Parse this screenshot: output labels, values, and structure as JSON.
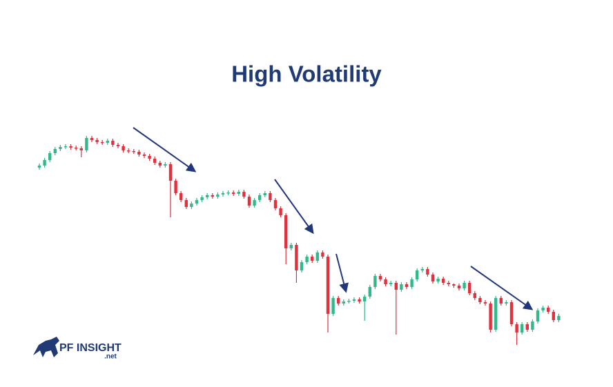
{
  "chart_data": {
    "type": "candlestick",
    "title": "High Volatility",
    "up_color": "#33b88b",
    "down_color": "#e0313d",
    "ylim": [
      0,
      340
    ],
    "open": [
      277,
      280,
      288,
      298,
      304,
      307,
      308,
      306,
      305,
      302,
      320,
      317,
      314,
      313,
      316,
      310,
      308,
      302,
      301,
      300,
      296,
      294,
      290,
      284,
      280,
      282,
      258,
      240,
      230,
      220,
      225,
      230,
      234,
      237,
      235,
      238,
      240,
      241,
      239,
      242,
      235,
      222,
      230,
      237,
      240,
      230,
      218,
      208,
      160,
      165,
      128,
      140,
      148,
      142,
      154,
      148,
      65,
      88,
      80,
      83,
      84,
      86,
      83,
      90,
      104,
      120,
      115,
      108,
      110,
      100,
      108,
      104,
      115,
      128,
      130,
      122,
      112,
      116,
      110,
      108,
      106,
      102,
      110,
      95,
      88,
      82,
      80,
      42,
      88,
      80,
      82,
      50,
      38,
      50,
      42,
      54,
      70,
      74,
      68,
      56
    ],
    "high": [
      283,
      291,
      301,
      307,
      310,
      311,
      311,
      309,
      308,
      323,
      323,
      320,
      317,
      319,
      319,
      313,
      311,
      305,
      304,
      303,
      299,
      297,
      293,
      287,
      285,
      285,
      261,
      243,
      233,
      228,
      233,
      237,
      240,
      240,
      241,
      243,
      244,
      244,
      245,
      245,
      238,
      233,
      240,
      243,
      243,
      233,
      221,
      211,
      168,
      168,
      143,
      151,
      151,
      157,
      157,
      151,
      91,
      91,
      86,
      87,
      89,
      89,
      93,
      107,
      123,
      123,
      118,
      113,
      113,
      111,
      111,
      118,
      131,
      133,
      133,
      125,
      119,
      119,
      113,
      109,
      109,
      113,
      113,
      98,
      91,
      85,
      83,
      91,
      91,
      85,
      85,
      53,
      53,
      53,
      57,
      73,
      77,
      77,
      71,
      65
    ],
    "low": [
      274,
      277,
      285,
      295,
      301,
      304,
      303,
      302,
      292,
      299,
      314,
      311,
      310,
      310,
      307,
      305,
      299,
      298,
      297,
      293,
      291,
      287,
      281,
      277,
      277,
      205,
      237,
      227,
      217,
      217,
      222,
      227,
      231,
      232,
      232,
      235,
      237,
      236,
      236,
      232,
      219,
      219,
      227,
      234,
      227,
      215,
      205,
      137,
      157,
      110,
      125,
      137,
      139,
      139,
      145,
      38,
      62,
      77,
      77,
      80,
      81,
      80,
      55,
      87,
      101,
      112,
      105,
      105,
      35,
      97,
      101,
      101,
      112,
      125,
      119,
      109,
      109,
      107,
      105,
      103,
      99,
      99,
      92,
      85,
      79,
      77,
      38,
      39,
      77,
      77,
      47,
      20,
      35,
      39,
      39,
      51,
      67,
      65,
      53,
      53
    ],
    "close": [
      280,
      288,
      298,
      304,
      307,
      308,
      306,
      305,
      302,
      320,
      317,
      314,
      313,
      316,
      310,
      308,
      302,
      301,
      300,
      296,
      294,
      290,
      284,
      280,
      282,
      258,
      240,
      230,
      220,
      225,
      230,
      234,
      237,
      235,
      238,
      240,
      241,
      239,
      242,
      235,
      222,
      230,
      237,
      240,
      230,
      218,
      208,
      160,
      165,
      128,
      140,
      148,
      142,
      154,
      148,
      65,
      88,
      80,
      83,
      84,
      86,
      83,
      90,
      104,
      120,
      115,
      108,
      110,
      100,
      108,
      104,
      115,
      128,
      130,
      122,
      112,
      116,
      110,
      108,
      106,
      102,
      110,
      95,
      88,
      82,
      80,
      42,
      88,
      80,
      82,
      50,
      38,
      50,
      42,
      54,
      70,
      74,
      68,
      56,
      62
    ]
  },
  "logo": {
    "name": "PF INSIGHT",
    "domain": ".net"
  }
}
